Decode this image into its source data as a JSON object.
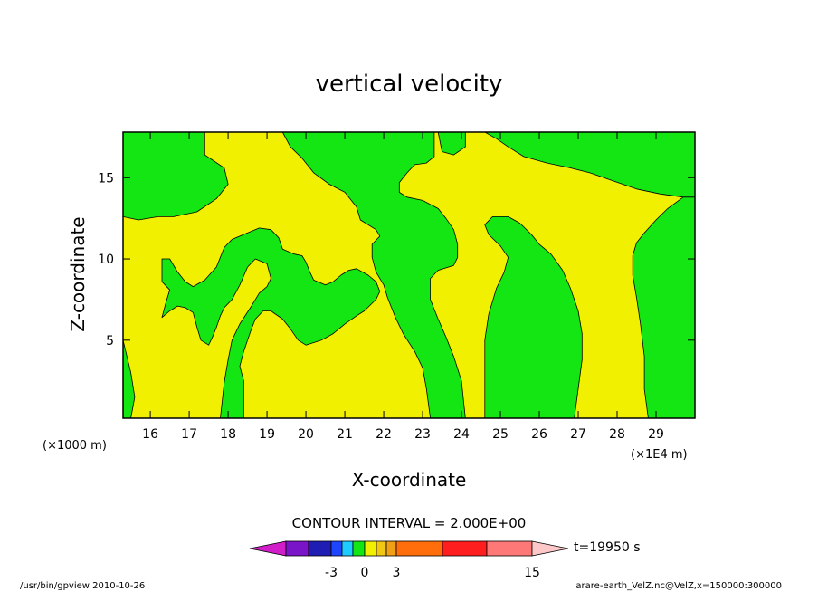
{
  "chart_data": {
    "type": "contour",
    "title": "vertical velocity",
    "xlabel": "X-coordinate",
    "ylabel": "Z-coordinate",
    "x_unit_left": "(×1000 m)",
    "x_unit_right": "(×1E4 m)",
    "xlim": [
      15.3,
      30
    ],
    "ylim": [
      0.2,
      17.8
    ],
    "x_ticks": [
      "16",
      "17",
      "18",
      "19",
      "20",
      "21",
      "22",
      "23",
      "24",
      "25",
      "26",
      "27",
      "28",
      "29"
    ],
    "y_ticks": [
      "5",
      "10",
      "15"
    ],
    "x_tick_values": [
      16,
      17,
      18,
      19,
      20,
      21,
      22,
      23,
      24,
      25,
      26,
      27,
      28,
      29
    ],
    "y_tick_values": [
      5,
      10,
      15
    ],
    "contour_interval_text": "CONTOUR INTERVAL = 2.000E+00",
    "time_label": "t=19950 s",
    "colorbar_labels": [
      "-3",
      "0",
      "3",
      "15"
    ],
    "colorbar_colors": [
      "#d21ec8",
      "#7a14c8",
      "#1e1eb4",
      "#1e46ff",
      "#1ecdff",
      "#14e614",
      "#f0f000",
      "#f0c814",
      "#f0a014",
      "#ff6e0a",
      "#ff1e1e",
      "#ff7878",
      "#ffc8c8"
    ],
    "colors": {
      "positive": "#f0f000",
      "negative": "#14e614"
    },
    "regions_negative": [
      {
        "name": "upper-left",
        "points": [
          [
            15.3,
            17.8
          ],
          [
            17.4,
            17.8
          ],
          [
            17.4,
            16.4
          ],
          [
            17.9,
            15.6
          ],
          [
            18.0,
            14.6
          ],
          [
            17.7,
            13.7
          ],
          [
            17.2,
            12.9
          ],
          [
            16.6,
            12.6
          ],
          [
            16.2,
            12.6
          ],
          [
            15.7,
            12.4
          ],
          [
            15.3,
            12.6
          ]
        ]
      },
      {
        "name": "center-loop",
        "points": [
          [
            16.3,
            10.0
          ],
          [
            16.5,
            10.0
          ],
          [
            16.7,
            9.2
          ],
          [
            16.9,
            8.6
          ],
          [
            17.1,
            8.3
          ],
          [
            17.4,
            8.7
          ],
          [
            17.7,
            9.5
          ],
          [
            17.8,
            10.1
          ],
          [
            17.9,
            10.7
          ],
          [
            18.1,
            11.2
          ],
          [
            18.5,
            11.6
          ],
          [
            18.8,
            11.9
          ],
          [
            19.1,
            11.8
          ],
          [
            19.3,
            11.3
          ],
          [
            19.4,
            10.6
          ],
          [
            19.7,
            10.3
          ],
          [
            19.9,
            10.2
          ],
          [
            20.0,
            9.8
          ],
          [
            20.1,
            9.2
          ],
          [
            20.2,
            8.7
          ],
          [
            20.5,
            8.4
          ],
          [
            20.7,
            8.6
          ],
          [
            20.9,
            9.0
          ],
          [
            21.1,
            9.3
          ],
          [
            21.3,
            9.4
          ],
          [
            21.6,
            9.0
          ],
          [
            21.8,
            8.6
          ],
          [
            21.9,
            8.0
          ],
          [
            21.8,
            7.5
          ],
          [
            21.5,
            6.8
          ],
          [
            21.3,
            6.5
          ],
          [
            21.0,
            6.0
          ],
          [
            20.7,
            5.4
          ],
          [
            20.4,
            5.0
          ],
          [
            20.0,
            4.7
          ],
          [
            19.8,
            5.0
          ],
          [
            19.6,
            5.7
          ],
          [
            19.4,
            6.3
          ],
          [
            19.1,
            6.8
          ],
          [
            18.9,
            6.8
          ],
          [
            18.7,
            6.3
          ],
          [
            18.6,
            5.7
          ],
          [
            18.5,
            5.0
          ],
          [
            18.4,
            4.3
          ],
          [
            18.3,
            3.4
          ],
          [
            18.4,
            2.5
          ],
          [
            18.4,
            0.2
          ],
          [
            17.8,
            0.2
          ],
          [
            17.9,
            2.4
          ],
          [
            18.0,
            3.8
          ],
          [
            18.1,
            5.0
          ],
          [
            18.3,
            6.0
          ],
          [
            18.6,
            7.1
          ],
          [
            18.8,
            7.9
          ],
          [
            19.0,
            8.3
          ],
          [
            19.1,
            8.8
          ],
          [
            19.0,
            9.7
          ],
          [
            18.7,
            10.0
          ],
          [
            18.5,
            9.5
          ],
          [
            18.3,
            8.4
          ],
          [
            18.1,
            7.5
          ],
          [
            17.9,
            7.0
          ],
          [
            17.8,
            6.5
          ],
          [
            17.7,
            5.8
          ],
          [
            17.6,
            5.2
          ],
          [
            17.5,
            4.7
          ],
          [
            17.3,
            5.0
          ],
          [
            17.2,
            5.8
          ],
          [
            17.1,
            6.7
          ],
          [
            16.9,
            7.0
          ],
          [
            16.7,
            7.1
          ],
          [
            16.5,
            6.8
          ],
          [
            16.3,
            6.4
          ],
          [
            16.4,
            7.3
          ],
          [
            16.5,
            8.1
          ],
          [
            16.3,
            8.6
          ],
          [
            16.3,
            9.5
          ]
        ]
      },
      {
        "name": "center-tall",
        "points": [
          [
            19.4,
            17.8
          ],
          [
            23.3,
            17.8
          ],
          [
            23.3,
            16.3
          ],
          [
            23.1,
            15.9
          ],
          [
            22.8,
            15.8
          ],
          [
            22.6,
            15.3
          ],
          [
            22.4,
            14.7
          ],
          [
            22.4,
            14.1
          ],
          [
            22.6,
            13.8
          ],
          [
            23.0,
            13.6
          ],
          [
            23.4,
            13.1
          ],
          [
            23.6,
            12.5
          ],
          [
            23.8,
            11.8
          ],
          [
            23.9,
            10.9
          ],
          [
            23.9,
            10.1
          ],
          [
            23.8,
            9.6
          ],
          [
            23.4,
            9.3
          ],
          [
            23.2,
            8.8
          ],
          [
            23.2,
            7.5
          ],
          [
            23.4,
            6.3
          ],
          [
            23.6,
            5.2
          ],
          [
            23.8,
            4.0
          ],
          [
            24.0,
            2.5
          ],
          [
            24.1,
            0.2
          ],
          [
            23.2,
            0.2
          ],
          [
            23.1,
            2.0
          ],
          [
            23.0,
            3.3
          ],
          [
            22.8,
            4.3
          ],
          [
            22.5,
            5.4
          ],
          [
            22.3,
            6.4
          ],
          [
            22.1,
            7.6
          ],
          [
            22.0,
            8.4
          ],
          [
            21.8,
            9.2
          ],
          [
            21.7,
            10.1
          ],
          [
            21.7,
            10.9
          ],
          [
            21.9,
            11.4
          ],
          [
            21.8,
            11.8
          ],
          [
            21.4,
            12.4
          ],
          [
            21.3,
            13.2
          ],
          [
            21.0,
            14.1
          ],
          [
            20.6,
            14.6
          ],
          [
            20.2,
            15.3
          ],
          [
            19.9,
            16.2
          ],
          [
            19.6,
            16.9
          ]
        ]
      },
      {
        "name": "top-green-notch",
        "points": [
          [
            23.4,
            17.8
          ],
          [
            24.1,
            17.8
          ],
          [
            24.1,
            16.9
          ],
          [
            23.8,
            16.4
          ],
          [
            23.5,
            16.6
          ]
        ]
      },
      {
        "name": "top-band",
        "points": [
          [
            24.6,
            17.8
          ],
          [
            30.0,
            17.8
          ],
          [
            30.0,
            13.8
          ],
          [
            29.7,
            13.8
          ],
          [
            29.1,
            14.0
          ],
          [
            28.5,
            14.3
          ],
          [
            27.9,
            14.8
          ],
          [
            27.3,
            15.3
          ],
          [
            26.8,
            15.6
          ],
          [
            26.2,
            15.9
          ],
          [
            25.6,
            16.3
          ],
          [
            25.2,
            16.9
          ],
          [
            24.9,
            17.4
          ]
        ]
      },
      {
        "name": "right-arch",
        "points": [
          [
            24.6,
            0.2
          ],
          [
            26.9,
            0.2
          ],
          [
            27.0,
            2.0
          ],
          [
            27.1,
            3.8
          ],
          [
            27.1,
            5.4
          ],
          [
            27.0,
            6.8
          ],
          [
            26.8,
            8.2
          ],
          [
            26.6,
            9.3
          ],
          [
            26.3,
            10.3
          ],
          [
            26.0,
            10.9
          ],
          [
            25.8,
            11.5
          ],
          [
            25.5,
            12.2
          ],
          [
            25.2,
            12.6
          ],
          [
            24.8,
            12.6
          ],
          [
            24.6,
            12.1
          ],
          [
            24.7,
            11.5
          ],
          [
            25.0,
            10.8
          ],
          [
            25.2,
            10.1
          ],
          [
            25.1,
            9.2
          ],
          [
            24.9,
            8.2
          ],
          [
            24.7,
            6.6
          ],
          [
            24.6,
            5.0
          ],
          [
            24.6,
            3.0
          ]
        ]
      },
      {
        "name": "right-edge",
        "points": [
          [
            28.8,
            0.2
          ],
          [
            30.0,
            0.2
          ],
          [
            30.0,
            13.8
          ],
          [
            29.7,
            13.8
          ],
          [
            29.3,
            13.1
          ],
          [
            29.0,
            12.4
          ],
          [
            28.7,
            11.6
          ],
          [
            28.5,
            11.0
          ],
          [
            28.4,
            10.2
          ],
          [
            28.4,
            9.0
          ],
          [
            28.5,
            7.6
          ],
          [
            28.6,
            6.0
          ],
          [
            28.7,
            4.0
          ],
          [
            28.7,
            2.0
          ]
        ]
      },
      {
        "name": "left-edge",
        "points": [
          [
            15.3,
            0.2
          ],
          [
            15.5,
            0.2
          ],
          [
            15.6,
            1.5
          ],
          [
            15.5,
            3.0
          ],
          [
            15.4,
            4.0
          ],
          [
            15.3,
            5.0
          ]
        ]
      }
    ]
  },
  "footer": {
    "left": "/usr/bin/gpview 2010-10-26",
    "right": "arare-earth_VelZ.nc@VelZ,x=150000:300000"
  }
}
